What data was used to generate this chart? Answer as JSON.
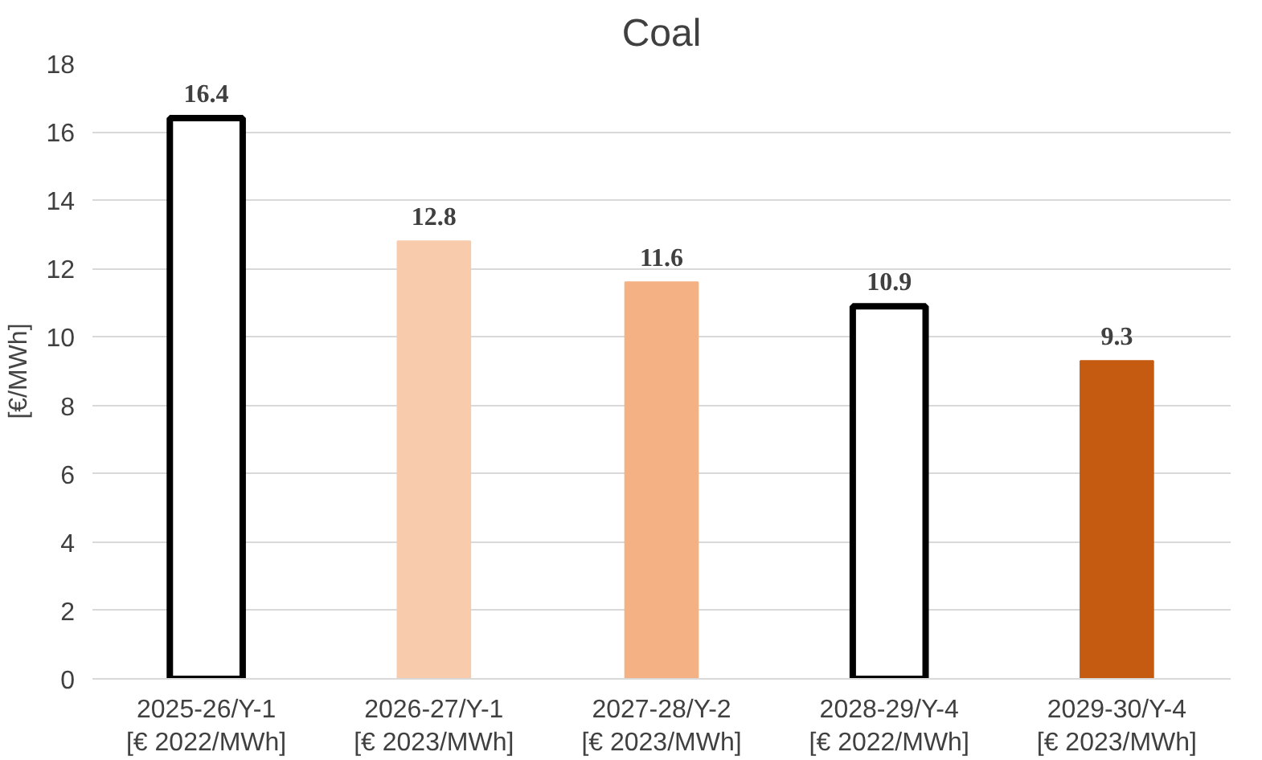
{
  "chart_data": {
    "type": "bar",
    "title": "Coal",
    "ylabel": "[€/MWh]",
    "categories": [
      "2025-26/Y-1\n[€ 2022/MWh]",
      "2026-27/Y-1\n[€ 2023/MWh]",
      "2027-28/Y-2\n[€ 2023/MWh]",
      "2028-29/Y-4\n[€ 2022/MWh]",
      "2029-30/Y-4\n[€ 2023/MWh]"
    ],
    "values": [
      16.4,
      12.8,
      11.6,
      10.9,
      9.3
    ],
    "colors": [
      "#ffffff",
      "#f8cbad",
      "#f4b183",
      "#ffffff",
      "#c55a11"
    ],
    "ylim": [
      0,
      18
    ],
    "yticks": [
      0,
      2,
      4,
      6,
      8,
      10,
      12,
      14,
      16,
      18
    ],
    "grid": "y",
    "data_labels": true
  }
}
